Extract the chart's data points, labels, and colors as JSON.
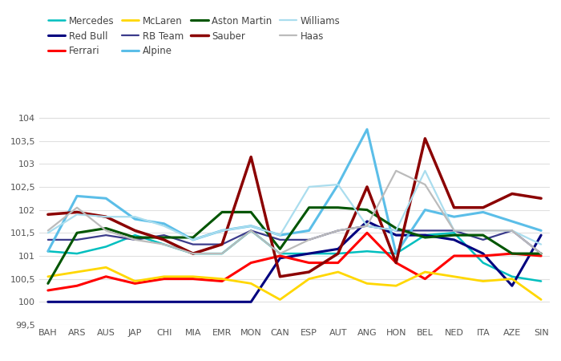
{
  "races": [
    "BAH",
    "ARS",
    "AUS",
    "JAP",
    "CHI",
    "MIA",
    "EMR",
    "MON",
    "CAN",
    "ESP",
    "AUT",
    "ANG",
    "HON",
    "BEL",
    "NED",
    "ITA",
    "AZE",
    "SIN"
  ],
  "teams": {
    "Mercedes": {
      "color": "#00BFBF",
      "lw": 1.8,
      "values": [
        101.1,
        101.05,
        101.2,
        101.45,
        101.25,
        101.05,
        101.05,
        101.55,
        101.05,
        101.05,
        101.05,
        101.1,
        101.05,
        101.45,
        101.5,
        100.85,
        100.55,
        100.45
      ]
    },
    "Red Bull": {
      "color": "#00007F",
      "lw": 2.2,
      "values": [
        100.0,
        100.0,
        100.0,
        100.0,
        100.0,
        100.0,
        100.0,
        100.0,
        100.95,
        101.05,
        101.15,
        101.75,
        101.45,
        101.45,
        101.35,
        101.05,
        100.35,
        101.45
      ]
    },
    "Ferrari": {
      "color": "#FF0000",
      "lw": 2.2,
      "values": [
        100.25,
        100.35,
        100.55,
        100.4,
        100.5,
        100.5,
        100.45,
        100.85,
        101.0,
        100.85,
        100.85,
        101.5,
        100.85,
        100.5,
        101.0,
        101.0,
        101.05,
        101.0
      ]
    },
    "McLaren": {
      "color": "#FFD700",
      "lw": 2.0,
      "values": [
        100.55,
        100.65,
        100.75,
        100.45,
        100.55,
        100.55,
        100.5,
        100.4,
        100.05,
        100.5,
        100.65,
        100.4,
        100.35,
        100.65,
        100.55,
        100.45,
        100.5,
        100.05
      ]
    },
    "RB Team": {
      "color": "#3B3B8B",
      "lw": 1.6,
      "values": [
        101.35,
        101.35,
        101.45,
        101.35,
        101.45,
        101.25,
        101.25,
        101.55,
        101.35,
        101.35,
        101.55,
        101.65,
        101.55,
        101.55,
        101.55,
        101.35,
        101.55,
        101.05
      ]
    },
    "Alpine": {
      "color": "#5BBEE8",
      "lw": 2.2,
      "values": [
        101.1,
        102.3,
        102.25,
        101.8,
        101.7,
        101.35,
        101.55,
        101.65,
        101.45,
        101.55,
        102.55,
        103.75,
        101.05,
        102.0,
        101.85,
        101.95,
        101.75,
        101.55
      ]
    },
    "Aston Martin": {
      "color": "#005500",
      "lw": 2.2,
      "values": [
        100.4,
        101.5,
        101.6,
        101.4,
        101.4,
        101.4,
        101.95,
        101.95,
        101.15,
        102.05,
        102.05,
        102.0,
        101.6,
        101.4,
        101.45,
        101.45,
        101.05,
        101.05
      ]
    },
    "Sauber": {
      "color": "#8B0000",
      "lw": 2.5,
      "values": [
        101.9,
        101.95,
        101.85,
        101.55,
        101.35,
        101.05,
        101.25,
        103.15,
        100.55,
        100.65,
        101.05,
        102.5,
        100.85,
        103.55,
        102.05,
        102.05,
        102.35,
        102.25
      ]
    },
    "Williams": {
      "color": "#AADDEE",
      "lw": 1.6,
      "values": [
        101.5,
        101.9,
        101.85,
        101.85,
        101.65,
        101.35,
        101.55,
        101.65,
        101.45,
        102.5,
        102.55,
        101.65,
        101.55,
        102.85,
        101.55,
        101.55,
        101.55,
        101.25
      ]
    },
    "Haas": {
      "color": "#BBBBBB",
      "lw": 1.6,
      "values": [
        101.55,
        102.05,
        101.55,
        101.35,
        101.25,
        101.05,
        101.05,
        101.55,
        101.05,
        101.35,
        101.55,
        101.65,
        102.85,
        102.55,
        101.55,
        101.55,
        101.55,
        101.05
      ]
    }
  },
  "ylim": [
    99.5,
    104.05
  ],
  "yticks": [
    99.5,
    100.0,
    100.5,
    101.0,
    101.5,
    102.0,
    102.5,
    103.0,
    103.5,
    104.0
  ],
  "ytick_labels": [
    "99,5",
    "100",
    "100,5",
    "101",
    "101,5",
    "102",
    "102,5",
    "103",
    "103,5",
    "104"
  ],
  "background_color": "#ffffff",
  "grid_color": "#e0e0e0",
  "legend_order": [
    "Mercedes",
    "Red Bull",
    "Ferrari",
    "McLaren",
    "RB Team",
    "Alpine",
    "Aston Martin",
    "Sauber",
    "Williams",
    "Haas"
  ]
}
